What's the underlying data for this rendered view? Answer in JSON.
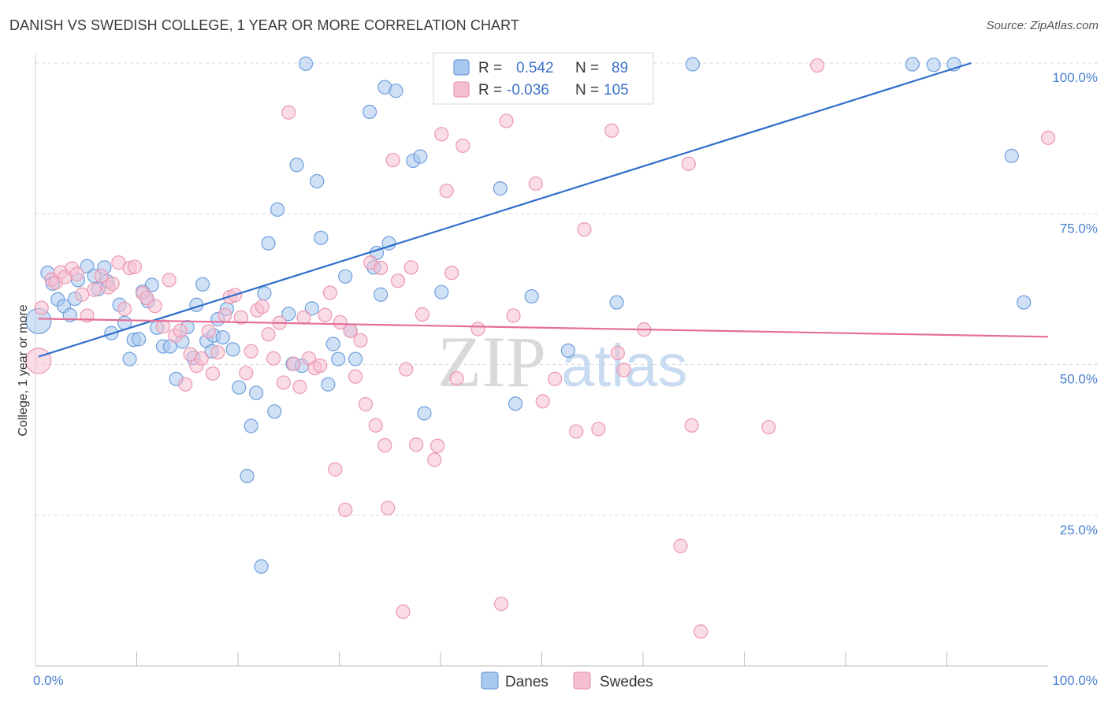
{
  "title": "DANISH VS SWEDISH COLLEGE, 1 YEAR OR MORE CORRELATION CHART",
  "source": "Source: ZipAtlas.com",
  "watermark": {
    "zip": "ZIP",
    "atlas": "atlas"
  },
  "colors": {
    "danes_fill": "#a9c8ef",
    "danes_stroke": "#6f9fdc",
    "danes_line": "#2f6fcb",
    "swedes_fill": "#f5bfd0",
    "swedes_stroke": "#eb97b3",
    "swedes_line": "#e46f98",
    "axis_text": "#4a7fd0",
    "grid": "#d8d8d8"
  },
  "legend": {
    "r_label": "R =",
    "n_label": "N =",
    "rows": [
      {
        "r": "0.542",
        "n": "89"
      },
      {
        "r": "-0.036",
        "n": "105"
      }
    ]
  },
  "chart_data": {
    "type": "scatter",
    "xlabel": "",
    "ylabel": "College, 1 year or more",
    "xlim": [
      0,
      100
    ],
    "ylim": [
      0,
      100
    ],
    "x_tick_labels": {
      "left": "0.0%",
      "right": "100.0%"
    },
    "y_ticks": [
      {
        "value": 100,
        "label": "100.0%"
      },
      {
        "value": 75,
        "label": "75.0%"
      },
      {
        "value": 50,
        "label": "50.0%"
      },
      {
        "value": 25,
        "label": "25.0%"
      }
    ],
    "series": [
      {
        "name": "Danes",
        "trend": {
          "x": [
            0.3,
            92.4
          ],
          "y": [
            51.3,
            100.0
          ]
        },
        "points": [
          [
            0.3,
            57.2
          ],
          [
            1.2,
            65.2
          ],
          [
            1.7,
            63.4
          ],
          [
            2.2,
            60.8
          ],
          [
            2.8,
            59.7
          ],
          [
            3.4,
            58.2
          ],
          [
            3.9,
            60.9
          ],
          [
            4.2,
            64.0
          ],
          [
            5.1,
            66.3
          ],
          [
            5.8,
            64.7
          ],
          [
            6.2,
            62.5
          ],
          [
            6.8,
            66.1
          ],
          [
            7.1,
            63.8
          ],
          [
            7.5,
            55.2
          ],
          [
            8.3,
            59.9
          ],
          [
            8.8,
            56.9
          ],
          [
            9.3,
            50.9
          ],
          [
            9.7,
            54.1
          ],
          [
            10.2,
            54.2
          ],
          [
            10.6,
            62.1
          ],
          [
            11.1,
            60.5
          ],
          [
            11.5,
            63.2
          ],
          [
            12.0,
            56.1
          ],
          [
            12.6,
            53.0
          ],
          [
            13.3,
            53.0
          ],
          [
            13.9,
            47.6
          ],
          [
            14.5,
            53.8
          ],
          [
            15.0,
            56.2
          ],
          [
            15.6,
            51.1
          ],
          [
            15.9,
            59.9
          ],
          [
            16.5,
            63.3
          ],
          [
            16.9,
            53.9
          ],
          [
            17.4,
            52.2
          ],
          [
            17.6,
            54.8
          ],
          [
            18.0,
            57.5
          ],
          [
            18.5,
            54.5
          ],
          [
            18.9,
            59.2
          ],
          [
            19.5,
            52.5
          ],
          [
            20.1,
            46.2
          ],
          [
            20.9,
            31.5
          ],
          [
            21.3,
            39.8
          ],
          [
            21.8,
            45.3
          ],
          [
            22.3,
            16.5
          ],
          [
            22.6,
            61.8
          ],
          [
            23.0,
            70.1
          ],
          [
            23.6,
            42.2
          ],
          [
            23.9,
            75.7
          ],
          [
            25.0,
            58.4
          ],
          [
            25.4,
            50.1
          ],
          [
            25.8,
            83.1
          ],
          [
            26.3,
            49.8
          ],
          [
            26.7,
            99.9
          ],
          [
            27.3,
            59.3
          ],
          [
            27.8,
            80.4
          ],
          [
            28.2,
            71.0
          ],
          [
            28.9,
            46.7
          ],
          [
            29.4,
            53.4
          ],
          [
            29.9,
            50.9
          ],
          [
            30.6,
            64.6
          ],
          [
            31.1,
            55.6
          ],
          [
            31.6,
            50.9
          ],
          [
            33.0,
            91.9
          ],
          [
            33.4,
            66.1
          ],
          [
            33.7,
            68.5
          ],
          [
            34.1,
            61.6
          ],
          [
            34.5,
            96.0
          ],
          [
            34.9,
            70.1
          ],
          [
            35.6,
            95.4
          ],
          [
            37.3,
            83.8
          ],
          [
            38.0,
            84.5
          ],
          [
            38.4,
            41.9
          ],
          [
            40.1,
            62.0
          ],
          [
            43.3,
            99.8
          ],
          [
            45.9,
            79.2
          ],
          [
            47.4,
            43.5
          ],
          [
            49.0,
            61.3
          ],
          [
            52.6,
            52.3
          ],
          [
            54.3,
            99.8
          ],
          [
            54.6,
            99.8
          ],
          [
            57.4,
            60.3
          ],
          [
            64.9,
            99.8
          ],
          [
            86.6,
            99.8
          ],
          [
            88.7,
            99.7
          ],
          [
            90.7,
            99.8
          ],
          [
            96.4,
            84.6
          ],
          [
            97.6,
            60.3
          ]
        ]
      },
      {
        "name": "Swedes",
        "trend": {
          "x": [
            0.3,
            100.0
          ],
          "y": [
            57.6,
            54.6
          ]
        },
        "points": [
          [
            0.3,
            50.6
          ],
          [
            0.6,
            59.4
          ],
          [
            1.6,
            64.1
          ],
          [
            2.0,
            63.6
          ],
          [
            2.5,
            65.3
          ],
          [
            2.9,
            64.5
          ],
          [
            3.6,
            65.9
          ],
          [
            4.1,
            65.0
          ],
          [
            4.6,
            61.6
          ],
          [
            5.1,
            58.1
          ],
          [
            5.8,
            62.4
          ],
          [
            6.5,
            64.7
          ],
          [
            7.2,
            62.8
          ],
          [
            7.6,
            63.4
          ],
          [
            8.2,
            66.9
          ],
          [
            8.8,
            59.2
          ],
          [
            9.3,
            66.0
          ],
          [
            9.8,
            66.2
          ],
          [
            10.6,
            61.8
          ],
          [
            11.0,
            61.0
          ],
          [
            11.8,
            59.7
          ],
          [
            12.6,
            56.3
          ],
          [
            13.2,
            64.0
          ],
          [
            13.8,
            54.8
          ],
          [
            14.3,
            55.6
          ],
          [
            14.8,
            46.7
          ],
          [
            15.3,
            51.7
          ],
          [
            15.9,
            49.8
          ],
          [
            16.4,
            51.0
          ],
          [
            17.1,
            55.5
          ],
          [
            17.5,
            48.5
          ],
          [
            18.0,
            52.0
          ],
          [
            18.7,
            58.2
          ],
          [
            19.2,
            61.2
          ],
          [
            19.7,
            61.5
          ],
          [
            20.3,
            57.8
          ],
          [
            20.8,
            48.6
          ],
          [
            21.3,
            52.2
          ],
          [
            21.9,
            59.0
          ],
          [
            22.4,
            59.6
          ],
          [
            23.0,
            55.0
          ],
          [
            23.5,
            51.0
          ],
          [
            24.1,
            56.9
          ],
          [
            24.5,
            47.0
          ],
          [
            25.0,
            91.8
          ],
          [
            25.5,
            50.1
          ],
          [
            26.1,
            46.3
          ],
          [
            26.5,
            57.8
          ],
          [
            27.0,
            51.0
          ],
          [
            27.6,
            49.4
          ],
          [
            28.1,
            49.8
          ],
          [
            28.6,
            58.2
          ],
          [
            29.1,
            61.9
          ],
          [
            29.6,
            32.6
          ],
          [
            30.1,
            57.0
          ],
          [
            30.6,
            25.9
          ],
          [
            31.1,
            55.6
          ],
          [
            31.6,
            48.0
          ],
          [
            32.1,
            54.0
          ],
          [
            32.6,
            43.4
          ],
          [
            33.1,
            66.9
          ],
          [
            33.6,
            39.9
          ],
          [
            34.1,
            66.0
          ],
          [
            34.5,
            36.6
          ],
          [
            34.8,
            26.2
          ],
          [
            35.3,
            83.9
          ],
          [
            35.8,
            63.9
          ],
          [
            36.3,
            9.0
          ],
          [
            36.6,
            49.2
          ],
          [
            37.1,
            66.1
          ],
          [
            37.6,
            36.7
          ],
          [
            38.2,
            58.3
          ],
          [
            39.4,
            34.2
          ],
          [
            39.7,
            36.5
          ],
          [
            40.1,
            88.2
          ],
          [
            40.6,
            78.8
          ],
          [
            41.1,
            65.2
          ],
          [
            41.6,
            47.7
          ],
          [
            42.2,
            86.3
          ],
          [
            43.7,
            55.9
          ],
          [
            46.0,
            10.3
          ],
          [
            46.5,
            90.4
          ],
          [
            47.2,
            58.1
          ],
          [
            49.4,
            80.0
          ],
          [
            50.1,
            43.9
          ],
          [
            51.3,
            47.6
          ],
          [
            53.4,
            38.9
          ],
          [
            54.2,
            72.4
          ],
          [
            55.6,
            39.3
          ],
          [
            56.9,
            88.8
          ],
          [
            57.5,
            51.9
          ],
          [
            58.1,
            49.1
          ],
          [
            60.1,
            55.8
          ],
          [
            63.7,
            19.9
          ],
          [
            64.5,
            83.3
          ],
          [
            64.8,
            39.9
          ],
          [
            65.7,
            5.7
          ],
          [
            72.4,
            39.6
          ],
          [
            77.2,
            99.6
          ],
          [
            100.0,
            87.6
          ]
        ]
      }
    ]
  },
  "bottom_legend": [
    {
      "label": "Danes"
    },
    {
      "label": "Swedes"
    }
  ]
}
